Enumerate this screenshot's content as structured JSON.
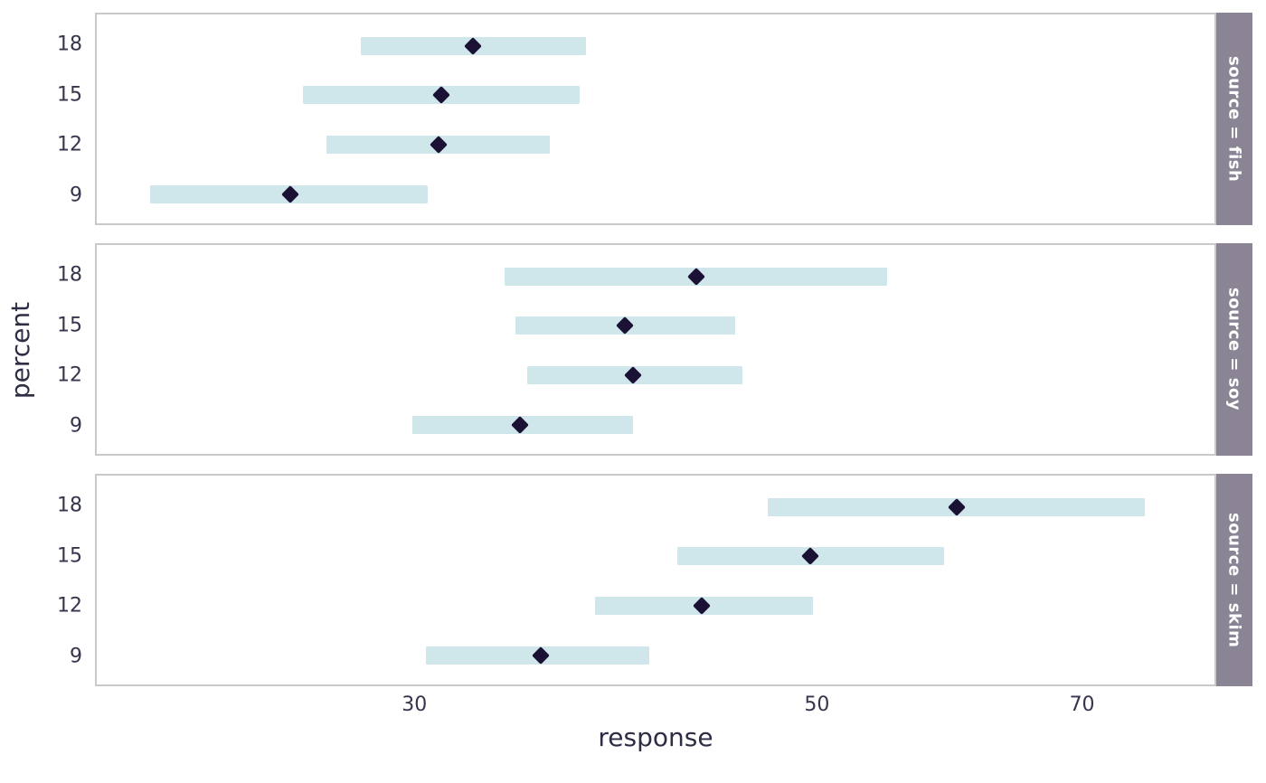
{
  "figure": {
    "colors": {
      "background": "#ffffff",
      "bar": "#cfe6ea",
      "point": "#1b1135",
      "strip_bg": "#8a8494",
      "strip_text": "#ffffff",
      "panel_border": "#c9c9c9",
      "tick_text": "#35354e",
      "title_text": "#2d2d44"
    }
  },
  "chart_data": {
    "type": "pointrange",
    "orientation": "horizontal",
    "title": "",
    "xlabel": "response",
    "ylabel": "percent",
    "x_scale": "log",
    "xlim": [
      20,
      83
    ],
    "x_ticks": [
      30,
      50,
      70
    ],
    "y_categories": [
      18,
      15,
      12,
      9
    ],
    "row_positions_pct": [
      15,
      38.7,
      62.3,
      86
    ],
    "legend": "none",
    "grid": "off",
    "facets": [
      {
        "key": "fish",
        "label": "source = fish",
        "rows": [
          {
            "percent": 18,
            "estimate": 32.3,
            "lower": 28.0,
            "upper": 37.3
          },
          {
            "percent": 15,
            "estimate": 31.0,
            "lower": 26.0,
            "upper": 37.0
          },
          {
            "percent": 12,
            "estimate": 30.9,
            "lower": 26.8,
            "upper": 35.6
          },
          {
            "percent": 9,
            "estimate": 25.6,
            "lower": 21.4,
            "upper": 30.5
          }
        ]
      },
      {
        "key": "soy",
        "label": "source = soy",
        "rows": [
          {
            "percent": 18,
            "estimate": 42.9,
            "lower": 33.6,
            "upper": 54.7
          },
          {
            "percent": 15,
            "estimate": 39.2,
            "lower": 34.1,
            "upper": 45.1
          },
          {
            "percent": 12,
            "estimate": 39.6,
            "lower": 34.6,
            "upper": 45.5
          },
          {
            "percent": 9,
            "estimate": 34.3,
            "lower": 29.9,
            "upper": 39.6
          }
        ]
      },
      {
        "key": "skim",
        "label": "source = skim",
        "rows": [
          {
            "percent": 18,
            "estimate": 59.8,
            "lower": 47.0,
            "upper": 76.0
          },
          {
            "percent": 15,
            "estimate": 49.6,
            "lower": 41.9,
            "upper": 58.8
          },
          {
            "percent": 12,
            "estimate": 43.2,
            "lower": 37.7,
            "upper": 49.8
          },
          {
            "percent": 9,
            "estimate": 35.2,
            "lower": 30.4,
            "upper": 40.4
          }
        ]
      }
    ]
  }
}
